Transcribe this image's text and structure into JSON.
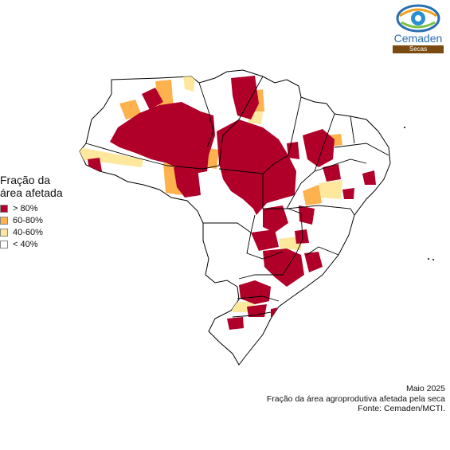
{
  "legend": {
    "title_line1": "Fração da",
    "title_line2": "área afetada",
    "items": [
      {
        "label": "> 80%",
        "color": "#b0002a"
      },
      {
        "label": "60-80%",
        "color": "#fdb24e"
      },
      {
        "label": "40-60%",
        "color": "#fde89e"
      },
      {
        "label": "< 40%",
        "color": "#ffffff"
      }
    ]
  },
  "caption": {
    "line1": "Maio 2025",
    "line2": "Fração da área agroprodutiva afetada pela seca",
    "line3": "Fonte: Cemaden/MCTI."
  },
  "logo": {
    "name": "Cemaden",
    "subtitle": "Secas"
  }
}
